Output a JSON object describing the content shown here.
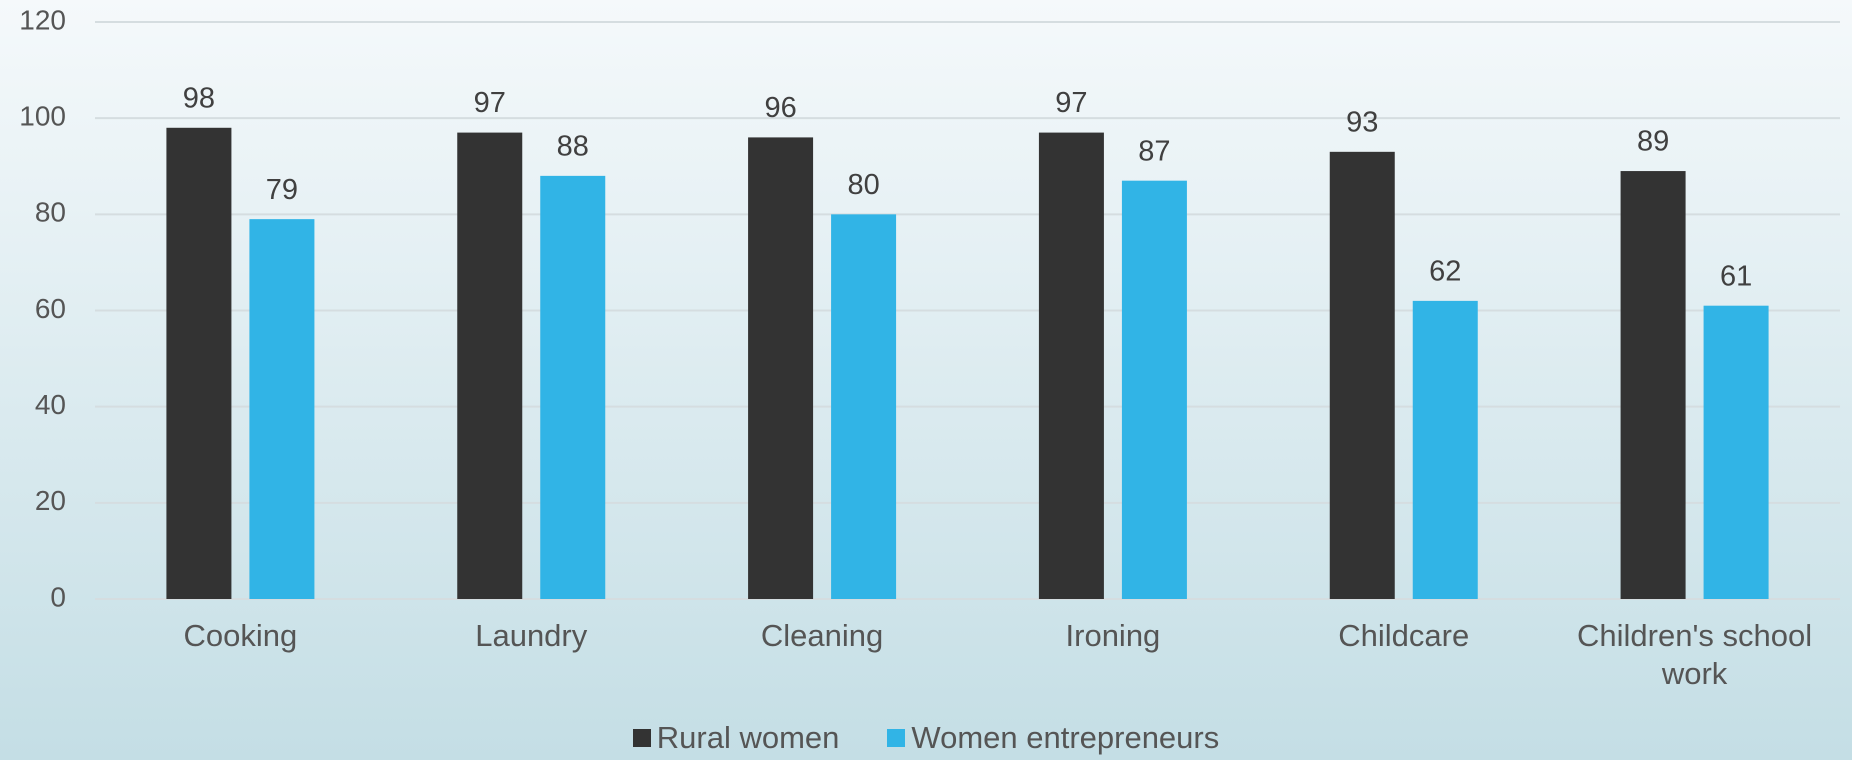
{
  "chart_data": {
    "type": "bar",
    "categories": [
      "Cooking",
      "Laundry",
      "Cleaning",
      "Ironing",
      "Childcare",
      "Children's school work"
    ],
    "series": [
      {
        "name": "Rural women",
        "color": "#333333",
        "values": [
          98,
          97,
          96,
          97,
          93,
          89
        ]
      },
      {
        "name": "Women entrepreneurs",
        "color": "#31b4e6",
        "values": [
          79,
          88,
          80,
          87,
          62,
          61
        ]
      }
    ],
    "ylim": [
      0,
      120
    ],
    "yticks": [
      0,
      20,
      40,
      60,
      80,
      100,
      120
    ],
    "grid": true,
    "legend": "bottom"
  }
}
